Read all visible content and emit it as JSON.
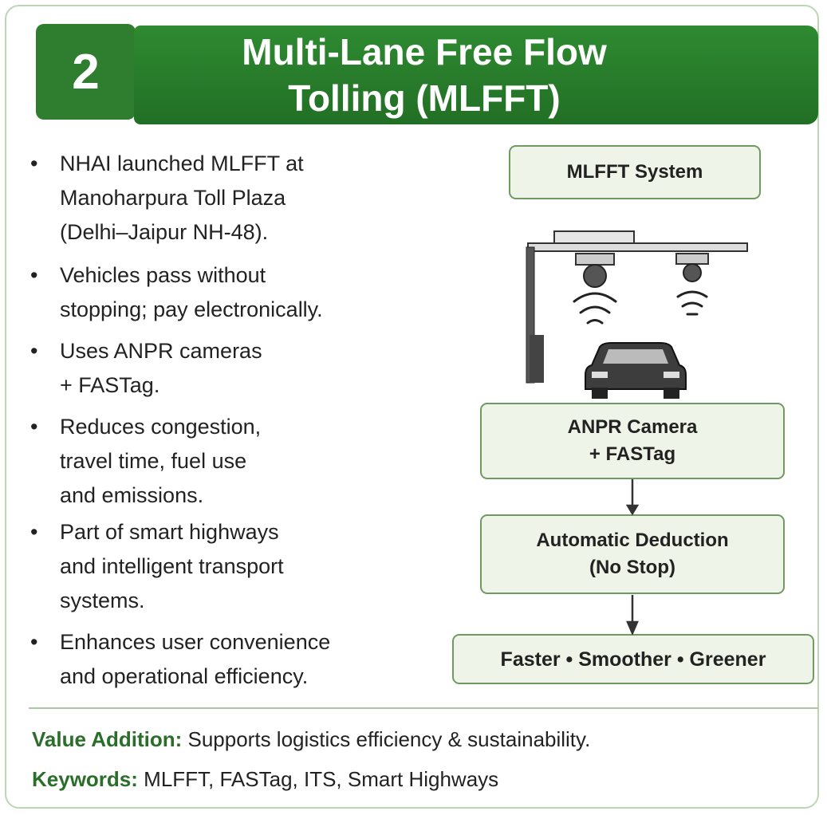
{
  "header": {
    "number": "2",
    "title_lines": [
      "Multi-Lane Free Flow",
      "Tolling (MLFFT)"
    ]
  },
  "bullets": [
    [
      "NHAI launched MLFFT at",
      "Manoharpura Toll Plaza",
      "(Delhi–Jaipur NH-48)."
    ],
    [
      "Vehicles pass without",
      "stopping; pay electronically."
    ],
    [
      "Uses ANPR cameras",
      "+ FASTag."
    ],
    [
      "Reduces congestion,",
      "travel time, fuel use",
      "and emissions."
    ],
    [
      "Part of smart highways",
      "and intelligent transport",
      "systems."
    ],
    [
      "Enhances user convenience",
      "and operational efficiency."
    ]
  ],
  "diagram": {
    "system": "MLFFT System",
    "nodes": [
      {
        "lines": [
          "ANPR Camera",
          "+ FASTag"
        ]
      },
      {
        "lines": [
          "Automatic Deduction",
          "(No Stop)"
        ]
      }
    ],
    "outcome": "Faster • Smoother • Greener"
  },
  "footer": {
    "value_label": "Value Addition:",
    "value_text": "Supports logistics efficiency & sustainability.",
    "keywords_label": "Keywords:",
    "keywords_text": "MLFFT, FASTag, ITS, Smart Highways"
  }
}
